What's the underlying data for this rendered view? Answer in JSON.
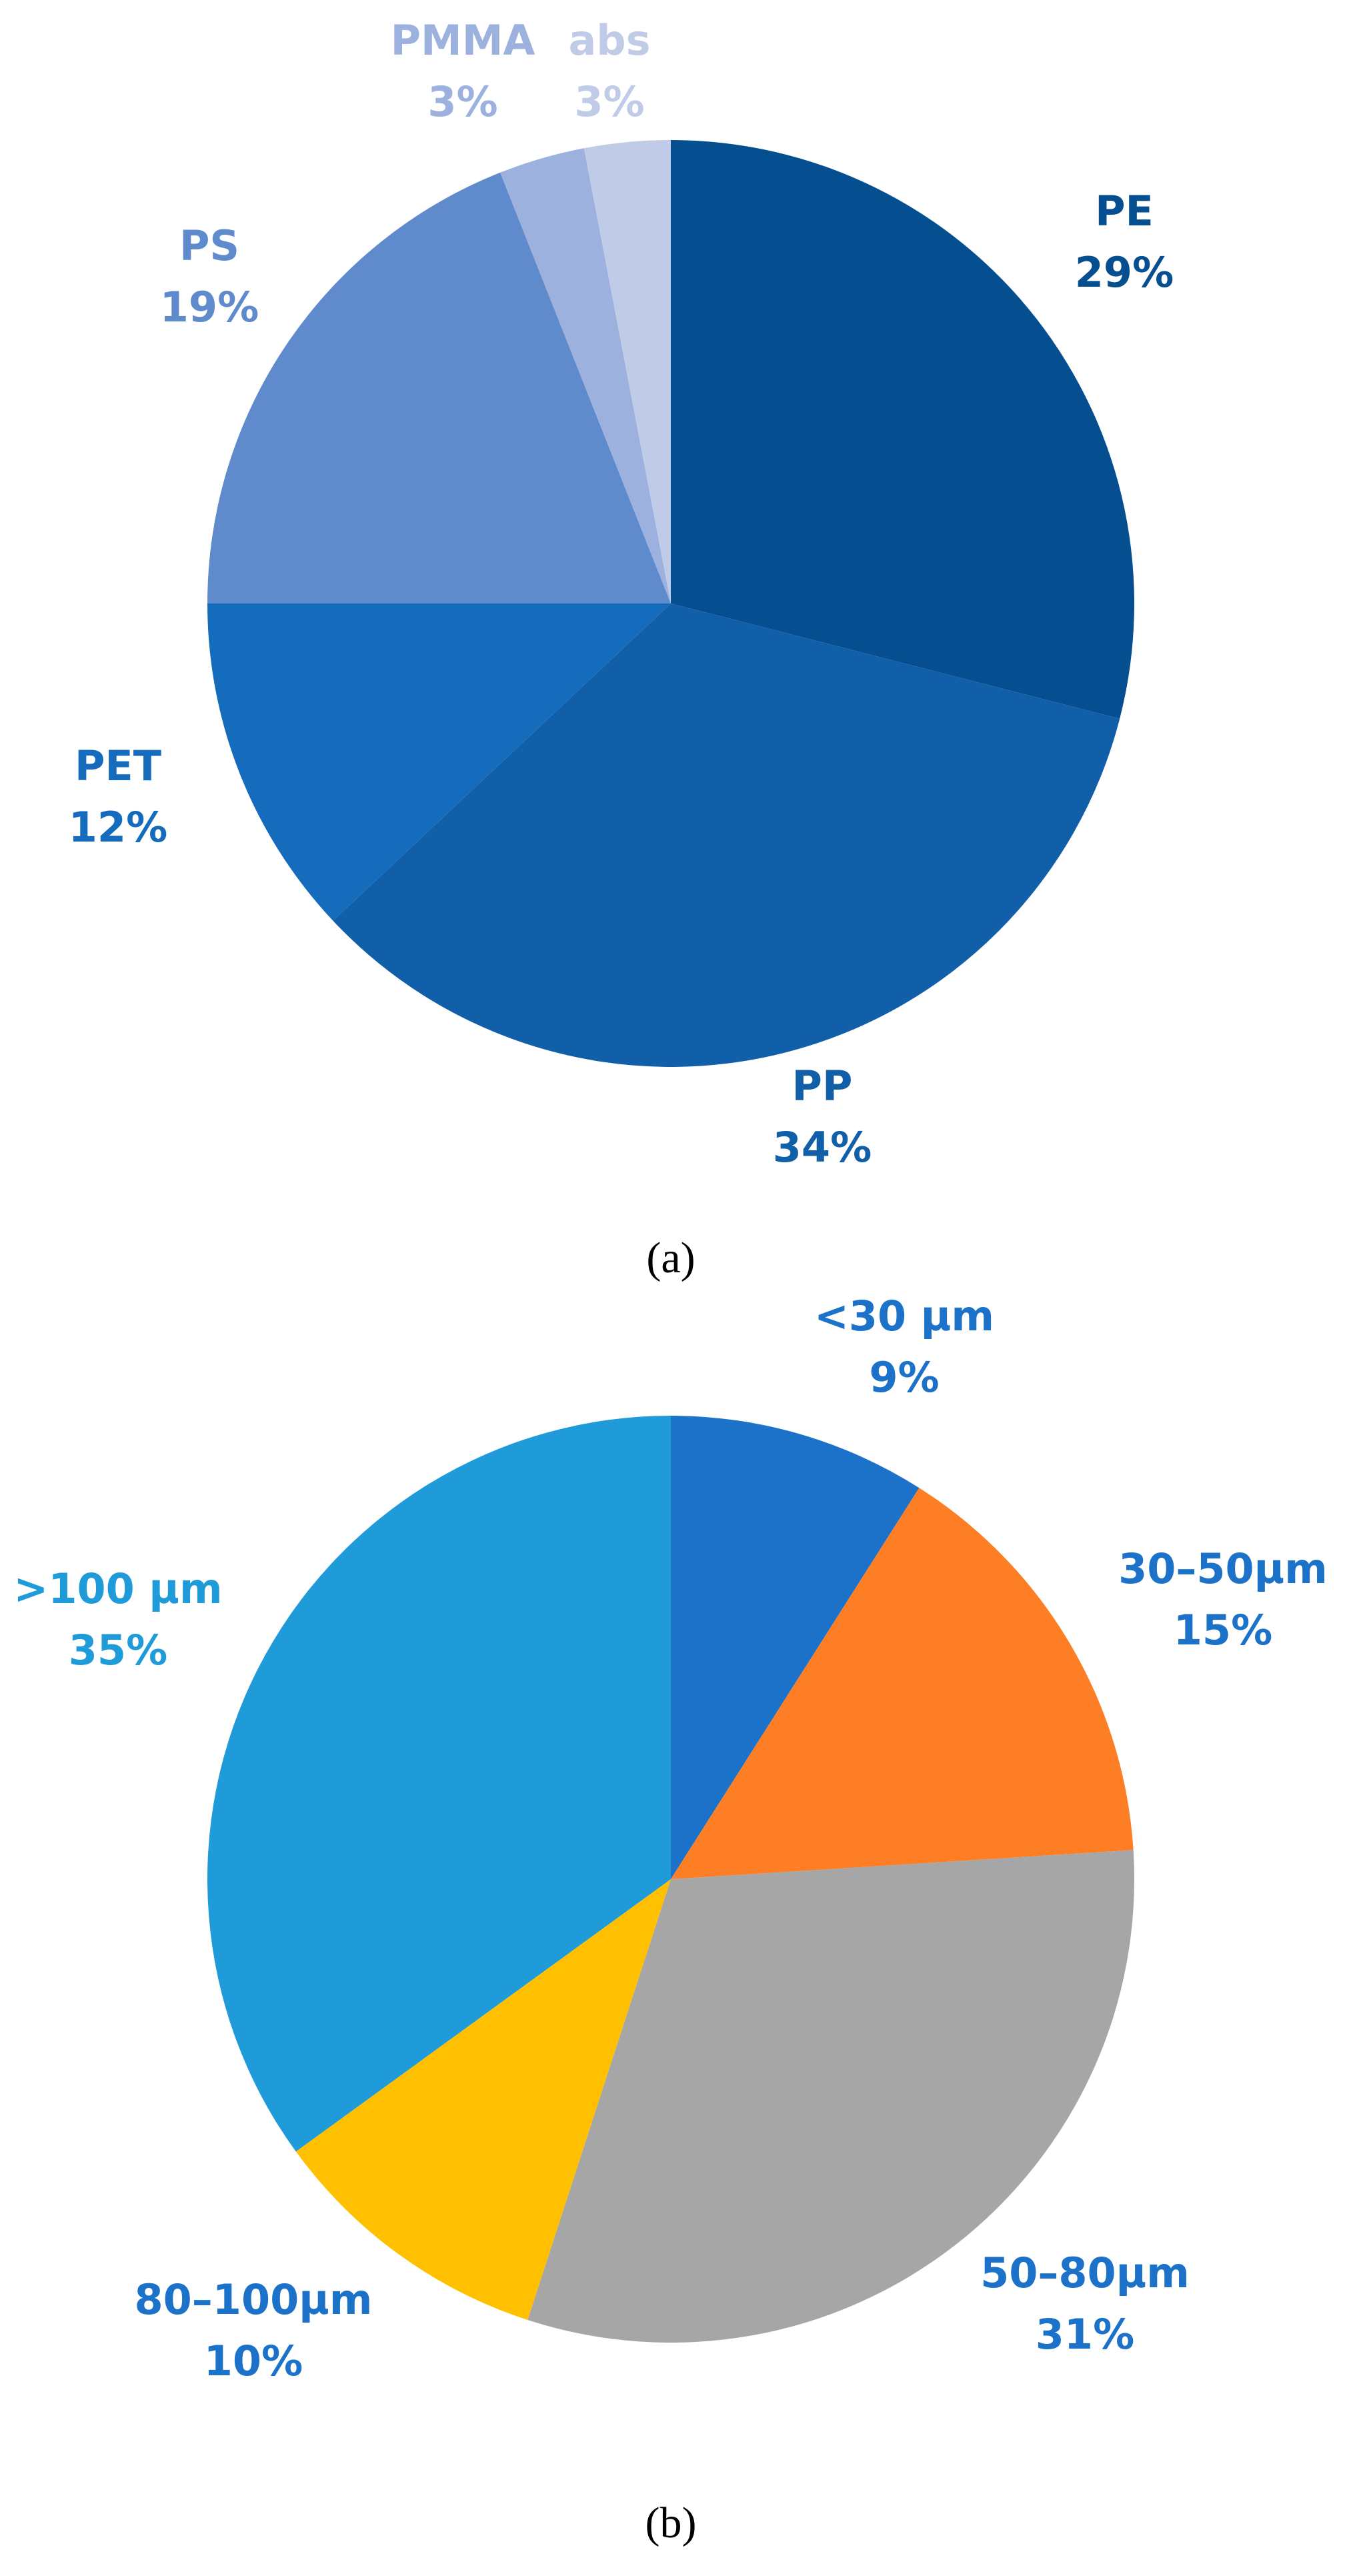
{
  "chart_data": [
    {
      "type": "pie",
      "caption": "(a)",
      "slices": [
        {
          "label": "PE",
          "value": 29,
          "pct_text": "29%",
          "color": "#054f91",
          "text_color": "#054f91"
        },
        {
          "label": "PP",
          "value": 34,
          "pct_text": "34%",
          "color": "#125fa9",
          "text_color": "#125fa9"
        },
        {
          "label": "PET",
          "value": 12,
          "pct_text": "12%",
          "color": "#156cbc",
          "text_color": "#156cbc"
        },
        {
          "label": "PS",
          "value": 19,
          "pct_text": "19%",
          "color": "#5f8bcd",
          "text_color": "#5f8bcd"
        },
        {
          "label": "PMMA",
          "value": 3,
          "pct_text": "3%",
          "color": "#9cb1dd",
          "text_color": "#9cb1dd"
        },
        {
          "label": "abs",
          "value": 3,
          "pct_text": "3%",
          "color": "#c0cbe7",
          "text_color": "#c0cbe7"
        }
      ]
    },
    {
      "type": "pie",
      "caption": "(b)",
      "slices": [
        {
          "label": "<30 µm",
          "value": 9,
          "pct_text": "9%",
          "color": "#1b72c8",
          "text_color": "#1b72c8"
        },
        {
          "label": "30–50µm",
          "value": 15,
          "pct_text": "15%",
          "color": "#fd7e25",
          "text_color": "#1b72c8"
        },
        {
          "label": "50–80µm",
          "value": 31,
          "pct_text": "31%",
          "color": "#a6a6a6",
          "text_color": "#1b72c8"
        },
        {
          "label": "80–100µm",
          "value": 10,
          "pct_text": "10%",
          "color": "#fec000",
          "text_color": "#1b72c8"
        },
        {
          "label": ">100 µm",
          "value": 35,
          "pct_text": "35%",
          "color": "#1e9bd8",
          "text_color": "#1e9bd8"
        }
      ]
    }
  ]
}
